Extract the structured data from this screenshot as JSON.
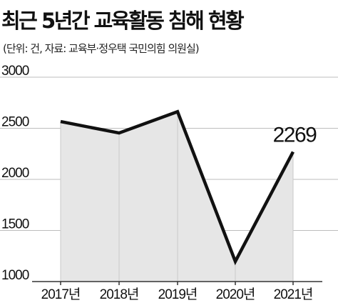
{
  "title": "최근 5년간 교육활동 침해 현황",
  "source": "(단위: 건, 자료: 교육부·정우택 국민의힘 의원실)",
  "colors": {
    "line": "#111111",
    "area": "#e6e6e6",
    "grid": "#bdbdbd",
    "axis": "#333333"
  },
  "chart_data": {
    "type": "area",
    "title": "최근 5년간 교육활동 침해 현황",
    "unit": "건",
    "categories": [
      "2017년",
      "2018년",
      "2019년",
      "2020년",
      "2021년"
    ],
    "values": [
      2566,
      2454,
      2662,
      1197,
      2269
    ],
    "ylim": [
      1000,
      3000
    ],
    "yticks": [
      1000,
      1500,
      2000,
      2500,
      3000
    ],
    "grid": true,
    "annotations": [
      {
        "category": "2021년",
        "text": "2269"
      }
    ]
  }
}
